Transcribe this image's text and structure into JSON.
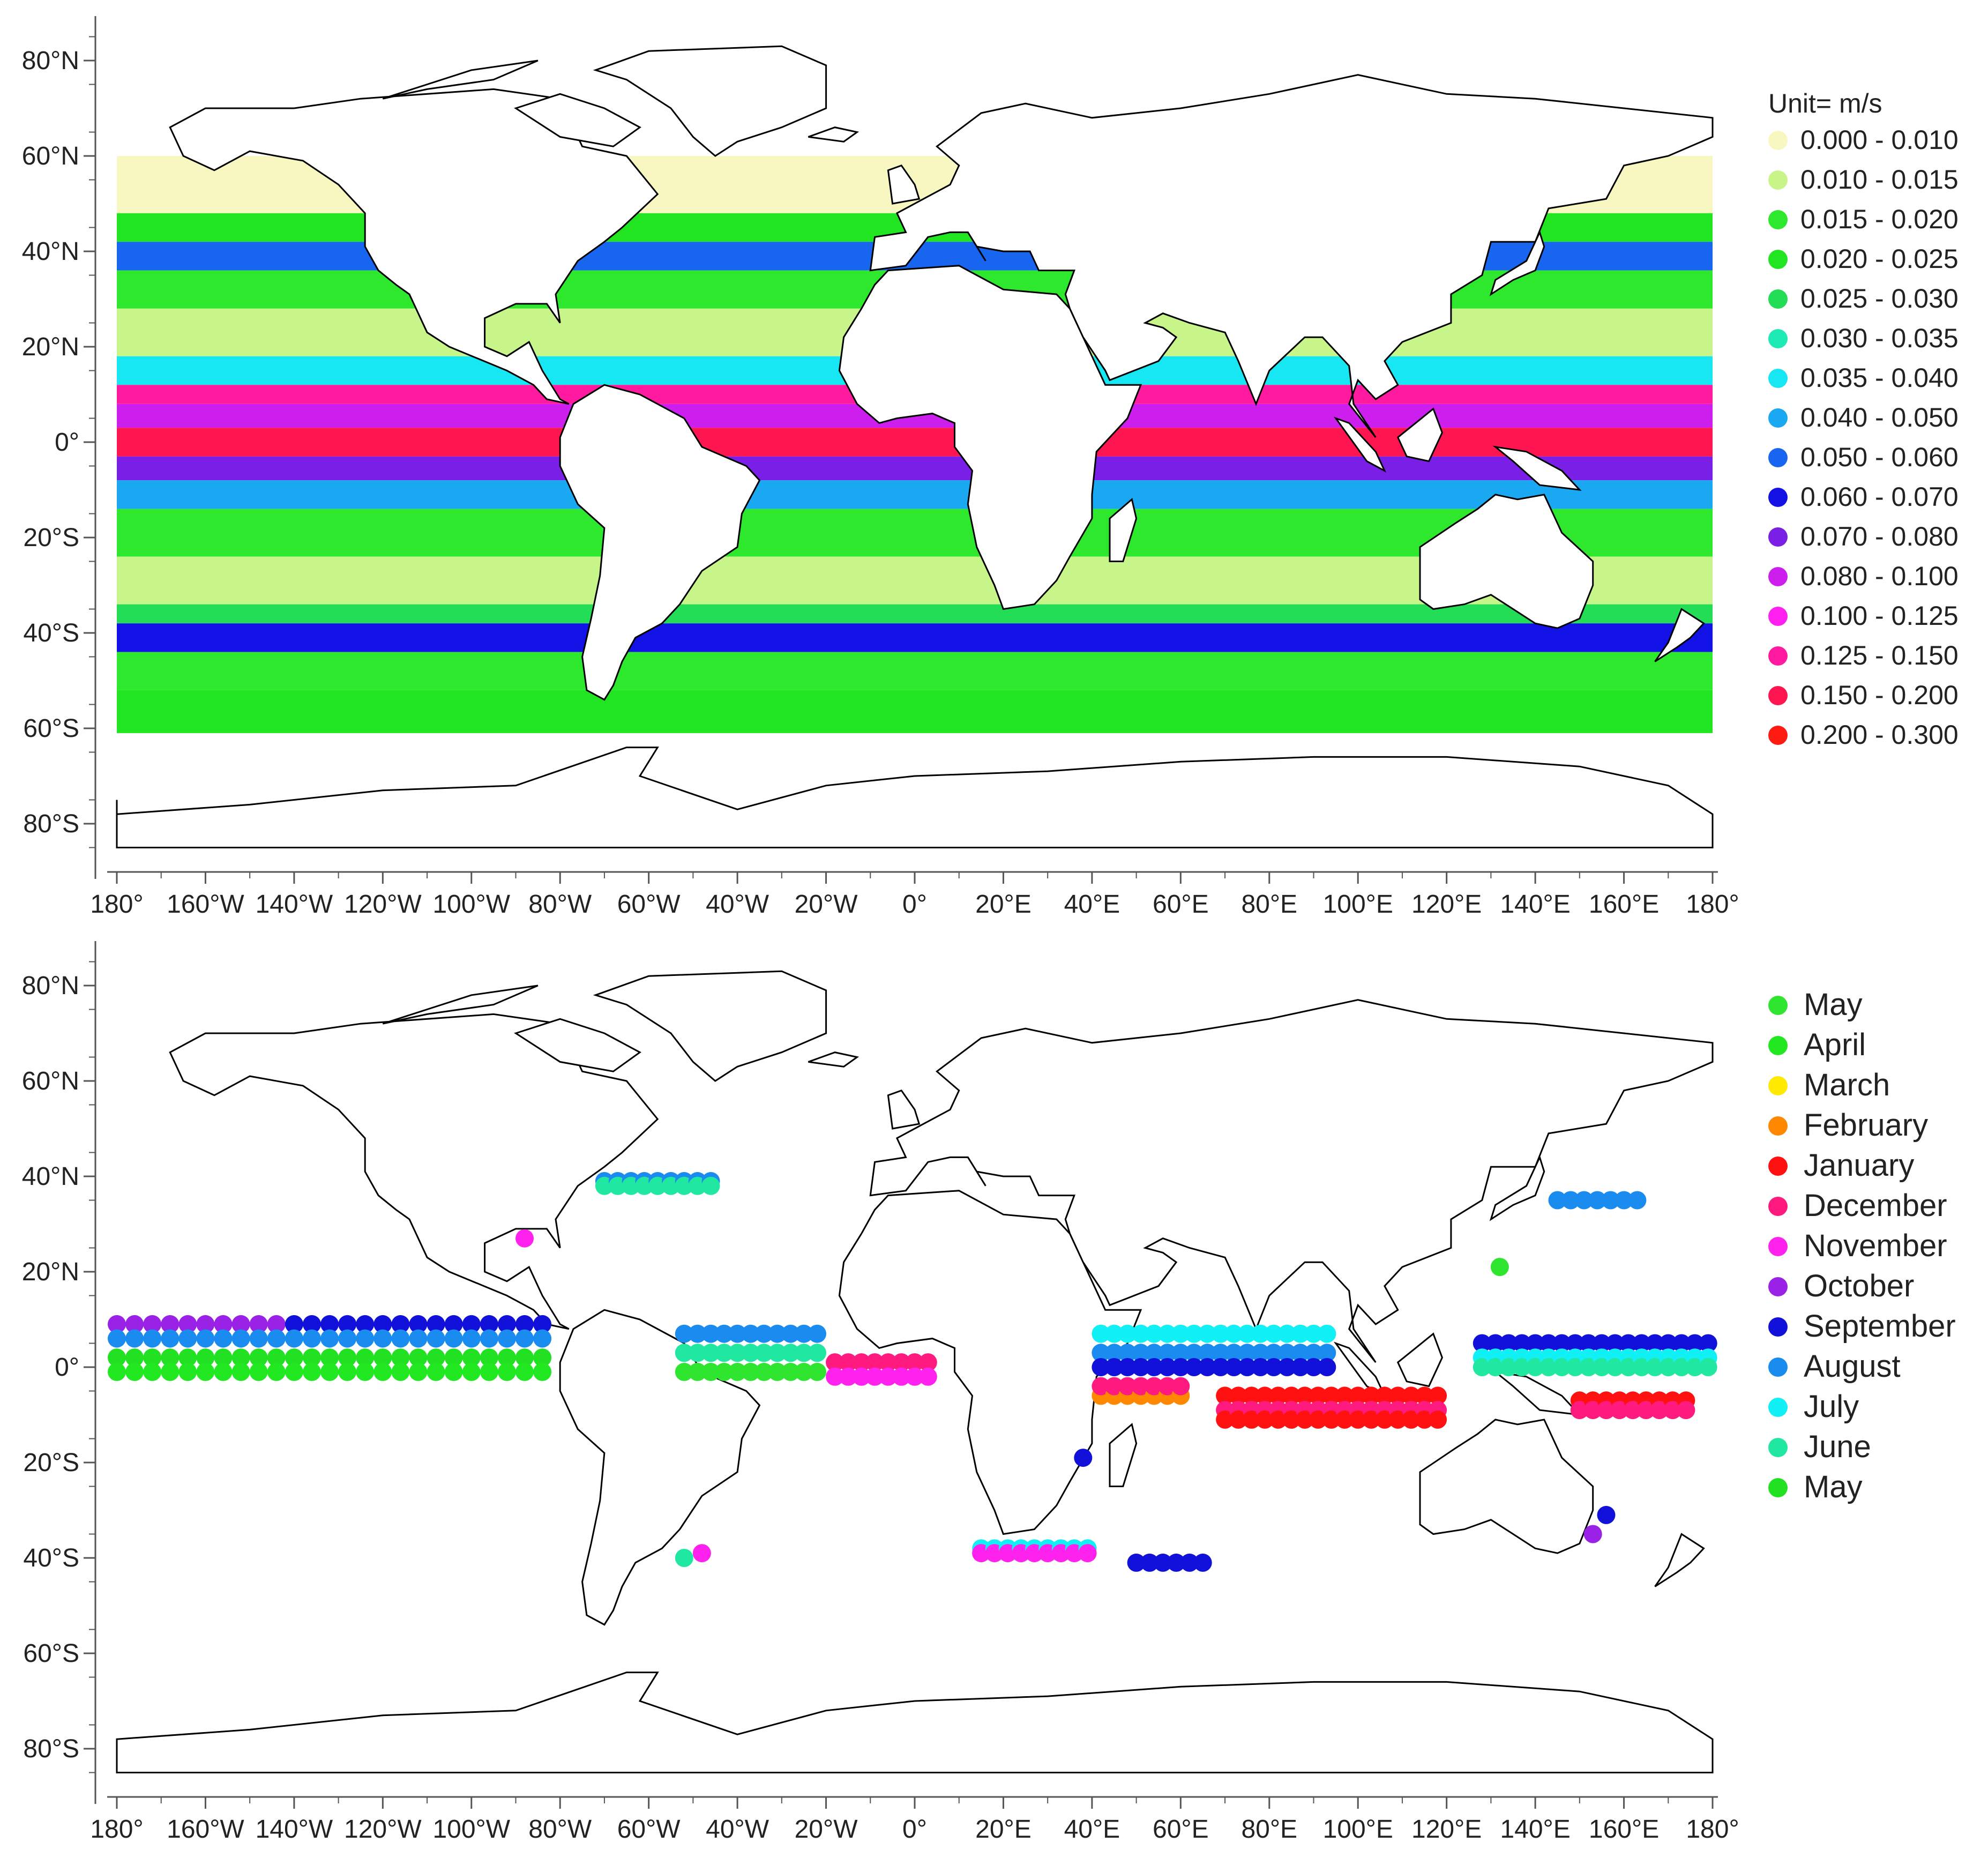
{
  "panels": [
    {
      "id": "top",
      "type": "choropleth",
      "legend_title": "Unit= m/s",
      "legend_items": [
        {
          "label": "0.000 - 0.010",
          "color": "#f8f7c2"
        },
        {
          "label": "0.010 - 0.015",
          "color": "#c8f58a"
        },
        {
          "label": "0.015 - 0.020",
          "color": "#2ee82e"
        },
        {
          "label": "0.020 - 0.025",
          "color": "#22e522"
        },
        {
          "label": "0.025 - 0.030",
          "color": "#22dd55"
        },
        {
          "label": "0.030 - 0.035",
          "color": "#1fe9b4"
        },
        {
          "label": "0.035 - 0.040",
          "color": "#17e7f3"
        },
        {
          "label": "0.040 - 0.050",
          "color": "#1aa8f2"
        },
        {
          "label": "0.050 - 0.060",
          "color": "#1866f0"
        },
        {
          "label": "0.060 - 0.070",
          "color": "#1212e6"
        },
        {
          "label": "0.070 - 0.080",
          "color": "#7a1fe6"
        },
        {
          "label": "0.080 - 0.100",
          "color": "#cc1fee"
        },
        {
          "label": "0.100 - 0.125",
          "color": "#ff1fee"
        },
        {
          "label": "0.125 - 0.150",
          "color": "#ff1aa0"
        },
        {
          "label": "0.150 - 0.200",
          "color": "#ff1650"
        },
        {
          "label": "0.200 - 0.300",
          "color": "#ff1a12"
        }
      ]
    },
    {
      "id": "bottom",
      "type": "scatter",
      "legend_items": [
        {
          "label": "May",
          "color": "#2fe52f"
        },
        {
          "label": "April",
          "color": "#22e822"
        },
        {
          "label": "March",
          "color": "#ffea00"
        },
        {
          "label": "February",
          "color": "#ff8800"
        },
        {
          "label": "January",
          "color": "#ff1111"
        },
        {
          "label": "December",
          "color": "#ff1a80"
        },
        {
          "label": "November",
          "color": "#ff22ee"
        },
        {
          "label": "October",
          "color": "#9922e6"
        },
        {
          "label": "September",
          "color": "#1111d9"
        },
        {
          "label": "August",
          "color": "#1a8cf0"
        },
        {
          "label": "July",
          "color": "#10f0f5"
        },
        {
          "label": "June",
          "color": "#20e8a0"
        },
        {
          "label": "May",
          "color": "#22e022"
        }
      ]
    }
  ],
  "axes": {
    "x_ticks": [
      "180°",
      "160°W",
      "140°W",
      "120°W",
      "100°W",
      "80°W",
      "60°W",
      "40°W",
      "20°W",
      "0°",
      "20°E",
      "40°E",
      "60°E",
      "80°E",
      "100°E",
      "120°E",
      "140°E",
      "160°E",
      "180°"
    ],
    "y_ticks": [
      "80°N",
      "60°N",
      "40°N",
      "20°N",
      "0°",
      "20°S",
      "40°S",
      "60°S",
      "80°S"
    ]
  }
}
